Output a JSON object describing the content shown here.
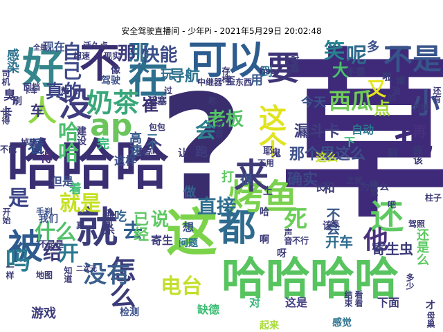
{
  "title": "安全驾驶直播间 - 少年Pi - 2021年5月29日 20:02:48",
  "words": [
    {
      "text": "草",
      "color": "#3e2a78"
    },
    {
      "text": "?",
      "color": "#3a2d6e"
    },
    {
      "text": "哈哈哈",
      "color": "#3b2f73"
    },
    {
      "text": "哈哈哈哈",
      "color": "#57c45f"
    },
    {
      "text": "这",
      "color": "#7cd34a"
    },
    {
      "text": "就",
      "color": "#3d3c7a"
    },
    {
      "text": "都",
      "color": "#2f6b8e"
    },
    {
      "text": "烤鱼",
      "color": "#7ad14d"
    },
    {
      "text": "被",
      "color": "#2e5a8e"
    },
    {
      "text": "在",
      "color": "#2c6f8e"
    },
    {
      "text": "可以",
      "color": "#2d5c8f"
    },
    {
      "text": "来",
      "color": "#3e3b78"
    },
    {
      "text": "不",
      "color": "#3b2f72"
    },
    {
      "text": "好",
      "color": "#35868c"
    },
    {
      "text": "没",
      "color": "#3f3d7d"
    },
    {
      "text": "人",
      "color": "#8fd744"
    },
    {
      "text": "ap",
      "color": "#6cc55c"
    },
    {
      "text": "奶茶",
      "color": "#3aa77b"
    },
    {
      "text": "要",
      "color": "#3e3578"
    },
    {
      "text": "不是",
      "color": "#37548b"
    },
    {
      "text": "也",
      "color": "#3e2a78"
    },
    {
      "text": "还",
      "color": "#5ec962"
    },
    {
      "text": "这个",
      "color": "#e0e31f"
    },
    {
      "text": "小",
      "color": "#3d4e88"
    },
    {
      "text": "西瓜",
      "color": "#6fcc57"
    },
    {
      "text": "又",
      "color": "#e4e41b"
    },
    {
      "text": "怎么",
      "color": "#3a3b78"
    },
    {
      "text": "没有",
      "color": "#3b5f8d"
    },
    {
      "text": "电台",
      "color": "#c3df2b"
    },
    {
      "text": "去",
      "color": "#2f5d8d"
    },
    {
      "text": "直接",
      "color": "#2d6d8e"
    },
    {
      "text": "什么",
      "color": "#4fc16a"
    },
    {
      "text": "他",
      "color": "#4a2f7e"
    },
    {
      "text": "会",
      "color": "#2f818e"
    },
    {
      "text": "吗",
      "color": "#2b7a8e"
    },
    {
      "text": "哈哈",
      "color": "#4cbd6f"
    },
    {
      "text": "那个",
      "color": "#2e6c8d"
    },
    {
      "text": "真的",
      "color": "#3b4587"
    },
    {
      "text": "老板",
      "color": "#55c365"
    },
    {
      "text": "笑",
      "color": "#26828e"
    },
    {
      "text": "呢",
      "color": "#2f6a8d"
    },
    {
      "text": "能",
      "color": "#3e4c8a"
    },
    {
      "text": "快",
      "color": "#3b4f8c"
    },
    {
      "text": "那",
      "color": "#3f3b7d"
    },
    {
      "text": "看",
      "color": "#2f4d8b"
    },
    {
      "text": "导航",
      "color": "#2c728e"
    },
    {
      "text": "是",
      "color": "#3c4488"
    },
    {
      "text": "开",
      "color": "#2a7a8e"
    },
    {
      "text": "个",
      "color": "#453780"
    },
    {
      "text": "已经",
      "color": "#5dc863"
    },
    {
      "text": "给",
      "color": "#3d3b79"
    },
    {
      "text": "说",
      "color": "#5ec962"
    },
    {
      "text": "崔",
      "color": "#3b2f72"
    },
    {
      "text": "确实",
      "color": "#3d4886"
    },
    {
      "text": "死",
      "color": "#6cce59"
    },
    {
      "text": "多",
      "color": "#3a518b"
    },
    {
      "text": "点",
      "color": "#a2da37"
    },
    {
      "text": "大",
      "color": "#4ac16d"
    },
    {
      "text": "自己",
      "color": "#3e4a89"
    },
    {
      "text": "漏斗卡",
      "color": "#3f3e7f"
    },
    {
      "text": "那个里这么",
      "color": "#3d4f8a"
    },
    {
      "text": "开车",
      "color": "#2f6b8e"
    },
    {
      "text": "不会",
      "color": "#3a5a8c"
    },
    {
      "text": "就是",
      "color": "#c5e021"
    },
    {
      "text": "寄生虫",
      "color": "#3b3b7a"
    },
    {
      "text": "今天",
      "color": "#3a528b"
    },
    {
      "text": "玩",
      "color": "#2e6e8e"
    },
    {
      "text": "游戏",
      "color": "#3b3a7a"
    },
    {
      "text": "高速",
      "color": "#3a5a8c"
    },
    {
      "text": "完",
      "color": "#35b779"
    },
    {
      "text": "着",
      "color": "#3dbc74"
    },
    {
      "text": "做",
      "color": "#35608d"
    },
    {
      "text": "跑",
      "color": "#3e3d7f"
    },
    {
      "text": "现在",
      "color": "#3b5288"
    },
    {
      "text": "感染",
      "color": "#2c728e"
    },
    {
      "text": "得",
      "color": "#4a2f7e"
    },
    {
      "text": "车",
      "color": "#3b3a78"
    },
    {
      "text": "再",
      "color": "#4a2f7e"
    },
    {
      "text": "用",
      "color": "#3b5a8c"
    },
    {
      "text": "到",
      "color": "#2c728e"
    },
    {
      "text": "自动",
      "color": "#2a788e"
    },
    {
      "text": "杀",
      "color": "#3b3a7a"
    },
    {
      "text": "吃",
      "color": "#33618d"
    },
    {
      "text": "寄生",
      "color": "#3f3c7e"
    },
    {
      "text": "检测",
      "color": "#3b518b"
    },
    {
      "text": "对",
      "color": "#35b779"
    },
    {
      "text": "这是",
      "color": "#433e85"
    },
    {
      "text": "感觉",
      "color": "#2c728e"
    },
    {
      "text": "下面",
      "color": "#3f3c7e"
    },
    {
      "text": "起来",
      "color": "#a8db34"
    },
    {
      "text": "缺德",
      "color": "#3dbc74"
    },
    {
      "text": "这样",
      "color": "#3b4e8a"
    },
    {
      "text": "我们",
      "color": "#3b518b"
    },
    {
      "text": "但是",
      "color": "#3b4b89"
    },
    {
      "text": "臭",
      "color": "#3b3a78"
    },
    {
      "text": "卡",
      "color": "#3b3a78"
    },
    {
      "text": "一个",
      "color": "#2f6b8e"
    },
    {
      "text": "这么",
      "color": "#c3df2b"
    },
    {
      "text": "驾驶",
      "color": "#3b518b"
    },
    {
      "text": "活塞",
      "color": "#3b3a78"
    },
    {
      "text": "打",
      "color": "#5dc863"
    },
    {
      "text": "很",
      "color": "#3b528b"
    },
    {
      "text": "为什么",
      "color": "#3b3a78"
    },
    {
      "text": "别",
      "color": "#3b3a78"
    },
    {
      "text": "鬼",
      "color": "#3b3a78"
    },
    {
      "text": "下",
      "color": "#35b779"
    },
    {
      "text": "建设",
      "color": "#3b3a78"
    },
    {
      "text": "手刹",
      "color": "#3b518b"
    },
    {
      "text": "问题",
      "color": "#2c728e"
    },
    {
      "text": "过",
      "color": "#3b3a78"
    },
    {
      "text": "不要",
      "color": "#3b3a78"
    },
    {
      "text": "还是么",
      "color": "#5ec962"
    },
    {
      "text": "才",
      "color": "#3b3a78"
    },
    {
      "text": "母巢",
      "color": "#3b3a78"
    },
    {
      "text": "有",
      "color": "#3b3a78"
    },
    {
      "text": "一样",
      "color": "#3b3a78"
    },
    {
      "text": "和",
      "color": "#3b3a78"
    },
    {
      "text": "长",
      "color": "#3b3a78"
    },
    {
      "text": "想",
      "color": "#3b518b"
    },
    {
      "text": "让",
      "color": "#3b3a78"
    },
    {
      "text": "进到",
      "color": "#3b3a78"
    },
    {
      "text": "方块",
      "color": "#3b3a78"
    },
    {
      "text": "啦",
      "color": "#3b3a78"
    },
    {
      "text": "谁",
      "color": "#3b3a78"
    },
    {
      "text": "中继器",
      "color": "#3b3a78"
    },
    {
      "text": "hso",
      "color": "#3b3a78"
    },
    {
      "text": "存档",
      "color": "#3b3a78"
    },
    {
      "text": "像",
      "color": "#3b3a78"
    },
    {
      "text": "超速",
      "color": "#3b3a78"
    },
    {
      "text": "活久点",
      "color": "#3b3a78"
    },
    {
      "text": "全是",
      "color": "#3b3a78"
    },
    {
      "text": "包包",
      "color": "#3b3a78"
    },
    {
      "text": "收音",
      "color": "#3b3a78"
    },
    {
      "text": "歪",
      "color": "#3b3a78"
    },
    {
      "text": "东西",
      "color": "#3b3a78"
    },
    {
      "text": "的",
      "color": "#3b3a78"
    },
    {
      "text": "应该",
      "color": "#3b3a78"
    },
    {
      "text": "还有",
      "color": "#3b3a78"
    },
    {
      "text": "柱子",
      "color": "#3b3a78"
    },
    {
      "text": "驾照",
      "color": "#3b3a78"
    },
    {
      "text": "声音",
      "color": "#3b3a78"
    },
    {
      "text": "不行",
      "color": "#3b3a78"
    },
    {
      "text": "耶",
      "color": "#3b3a78"
    },
    {
      "text": "不用",
      "color": "#3b3a78"
    },
    {
      "text": "掉头",
      "color": "#3b3a78"
    },
    {
      "text": "不能",
      "color": "#3b3a78"
    },
    {
      "text": "有点",
      "color": "#3b3a78"
    },
    {
      "text": "二次元",
      "color": "#3b3a78"
    },
    {
      "text": "知道",
      "color": "#3b3a78"
    },
    {
      "text": "司机",
      "color": "#3b3a78"
    },
    {
      "text": "记得",
      "color": "#3b3a78"
    },
    {
      "text": "刷",
      "color": "#3b3a78"
    },
    {
      "text": "放",
      "color": "#3b3a78"
    },
    {
      "text": "开始",
      "color": "#3b3a78"
    },
    {
      "text": "地图",
      "color": "#3b3a78"
    },
    {
      "text": "不是是",
      "color": "#3b3a78"
    },
    {
      "text": "等",
      "color": "#3b3a78"
    },
    {
      "text": "吧",
      "color": "#3b3a78"
    },
    {
      "text": "回档",
      "color": "#3b3a78"
    },
    {
      "text": "时候",
      "color": "#3b3a78"
    },
    {
      "text": "该",
      "color": "#3b3a78"
    },
    {
      "text": "上",
      "color": "#3b3a78"
    },
    {
      "text": "哈",
      "color": "#3b3a78"
    },
    {
      "text": "呀",
      "color": "#3b3a78"
    },
    {
      "text": "啊",
      "color": "#3b3a78"
    },
    {
      "text": "之前",
      "color": "#3b3a78"
    },
    {
      "text": "睡觉",
      "color": "#3b3a78"
    },
    {
      "text": "卡车",
      "color": "#3b3a78"
    },
    {
      "text": "真",
      "color": "#3b3a78"
    },
    {
      "text": "多少",
      "color": "#3b3a78"
    },
    {
      "text": "现实",
      "color": "#3b3a78"
    },
    {
      "text": "油",
      "color": "#3b3a78"
    },
    {
      "text": "老",
      "color": "#3b3a78"
    },
    {
      "text": "看看",
      "color": "#3b3a78"
    },
    {
      "text": "结束",
      "color": "#3b3a78"
    }
  ]
}
